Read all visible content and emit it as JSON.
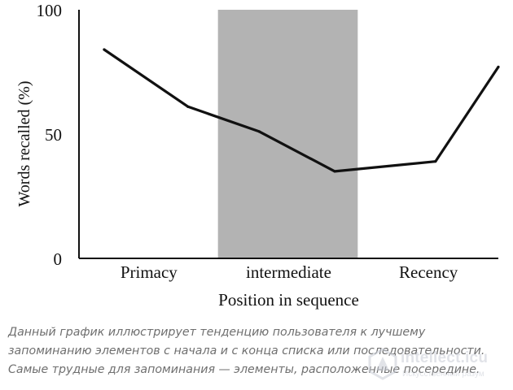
{
  "chart_data": {
    "type": "line",
    "ylabel": "Words recalled (%)",
    "xlabel": "Position in sequence",
    "ylim": [
      0,
      100
    ],
    "y_ticks": [
      0,
      50,
      100
    ],
    "x_regions": [
      "Primacy",
      "intermediate",
      "Recency"
    ],
    "shaded_region": "intermediate",
    "shade_color": "#b3b3b3",
    "line_color": "#111111",
    "grid": false,
    "series": [
      {
        "x": [
          0.06,
          0.26,
          0.43,
          0.61,
          0.85,
          1.0
        ],
        "values": [
          84,
          61,
          51,
          35,
          39,
          77
        ]
      }
    ]
  },
  "caption": "Данный график иллюстрирует тенденцию пользователя к лучшему запоминанию элементов с начала и с конца списка или последовательности. Самые трудные для запоминания — элементы, расположенные посередине.",
  "watermark": {
    "brand": "intellect.icu",
    "sub": "Искусственный разум"
  }
}
